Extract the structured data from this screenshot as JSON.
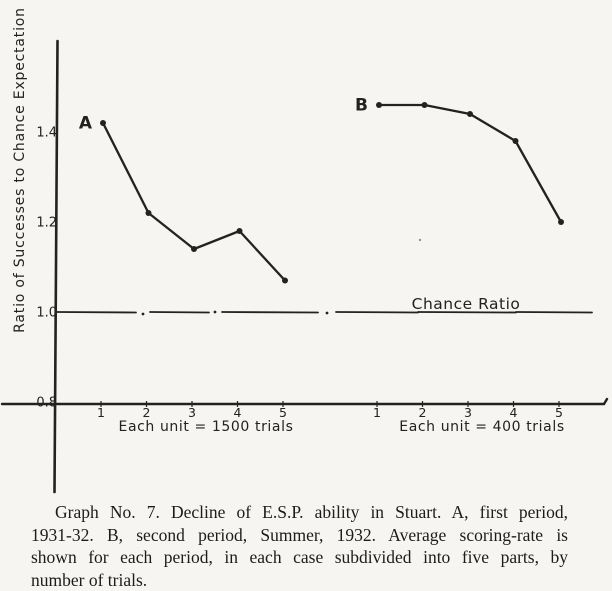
{
  "page": {
    "paper_color": "#f6f5f1",
    "ink_color": "#222220"
  },
  "chart_data": {
    "type": "line",
    "title": "",
    "xlabel": "",
    "ylabel": "Ratio of Successes to Chance Expectation",
    "yticks": [
      "0.8",
      "1.0",
      "1.2",
      "1.4"
    ],
    "ylim": [
      0.78,
      1.56
    ],
    "grid": false,
    "legend_position": "inline-point-labels",
    "reference_line": {
      "value": 1.0,
      "label": "Chance Ratio"
    },
    "series": [
      {
        "name": "A",
        "x": [
          1,
          2,
          3,
          4,
          5
        ],
        "values": [
          1.42,
          1.22,
          1.14,
          1.18,
          1.07
        ],
        "unit_label": "Each unit = 1500 trials"
      },
      {
        "name": "B",
        "x": [
          1,
          2,
          3,
          4,
          5
        ],
        "values": [
          1.46,
          1.46,
          1.44,
          1.38,
          1.2
        ],
        "unit_label": "Each unit  =  400 trials"
      }
    ]
  },
  "caption": {
    "full_text": "Graph No. 7.  Decline of E.S.P. ability in Stuart.  A, first period, 1931-32.  B, second period, Summer, 1932.  Average scoring-rate is shown for each period, in each case subdivided into five parts, by number of trials.",
    "lines": [
      "Graph No. 7.   Decline of E.S.P. ability in Stuart.   A, first period,",
      "1931-32.   B, second period, Summer, 1932.   Average scoring-rate is",
      "shown for each period, in each case subdivided into five parts, by",
      "number of trials."
    ]
  }
}
